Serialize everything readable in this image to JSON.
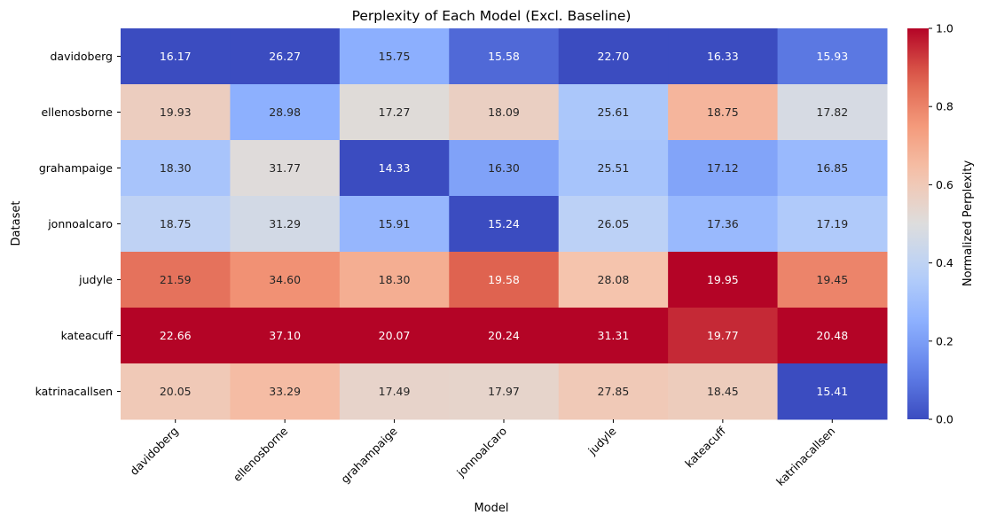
{
  "chart_data": {
    "type": "heatmap",
    "title": "Perplexity of Each Model (Excl. Baseline)",
    "xlabel": "Model",
    "ylabel": "Dataset",
    "x_categories": [
      "davidoberg",
      "ellenosborne",
      "grahampaige",
      "jonnoalcaro",
      "judyle",
      "kateacuff",
      "katrinacallsen"
    ],
    "y_categories": [
      "davidoberg",
      "ellenosborne",
      "grahampaige",
      "jonnoalcaro",
      "judyle",
      "kateacuff",
      "katrinacallsen"
    ],
    "values": [
      [
        16.17,
        26.27,
        15.75,
        15.58,
        22.7,
        16.33,
        15.93
      ],
      [
        19.93,
        28.98,
        17.27,
        18.09,
        25.61,
        18.75,
        17.82
      ],
      [
        18.3,
        31.77,
        14.33,
        16.3,
        25.51,
        17.12,
        16.85
      ],
      [
        18.75,
        31.29,
        15.91,
        15.24,
        26.05,
        17.36,
        17.19
      ],
      [
        21.59,
        34.6,
        18.3,
        19.58,
        28.08,
        19.95,
        19.45
      ],
      [
        22.66,
        37.1,
        20.07,
        20.24,
        31.31,
        19.77,
        20.48
      ],
      [
        20.05,
        33.29,
        17.49,
        17.97,
        27.85,
        18.45,
        15.41
      ]
    ],
    "normalization": "per-column min-max",
    "colormap": "coolwarm",
    "colorbar": {
      "label": "Normalized Perplexity",
      "range": [
        0,
        1
      ],
      "ticks": [
        "0.0",
        "0.2",
        "0.4",
        "0.6",
        "0.8",
        "1.0"
      ]
    }
  }
}
